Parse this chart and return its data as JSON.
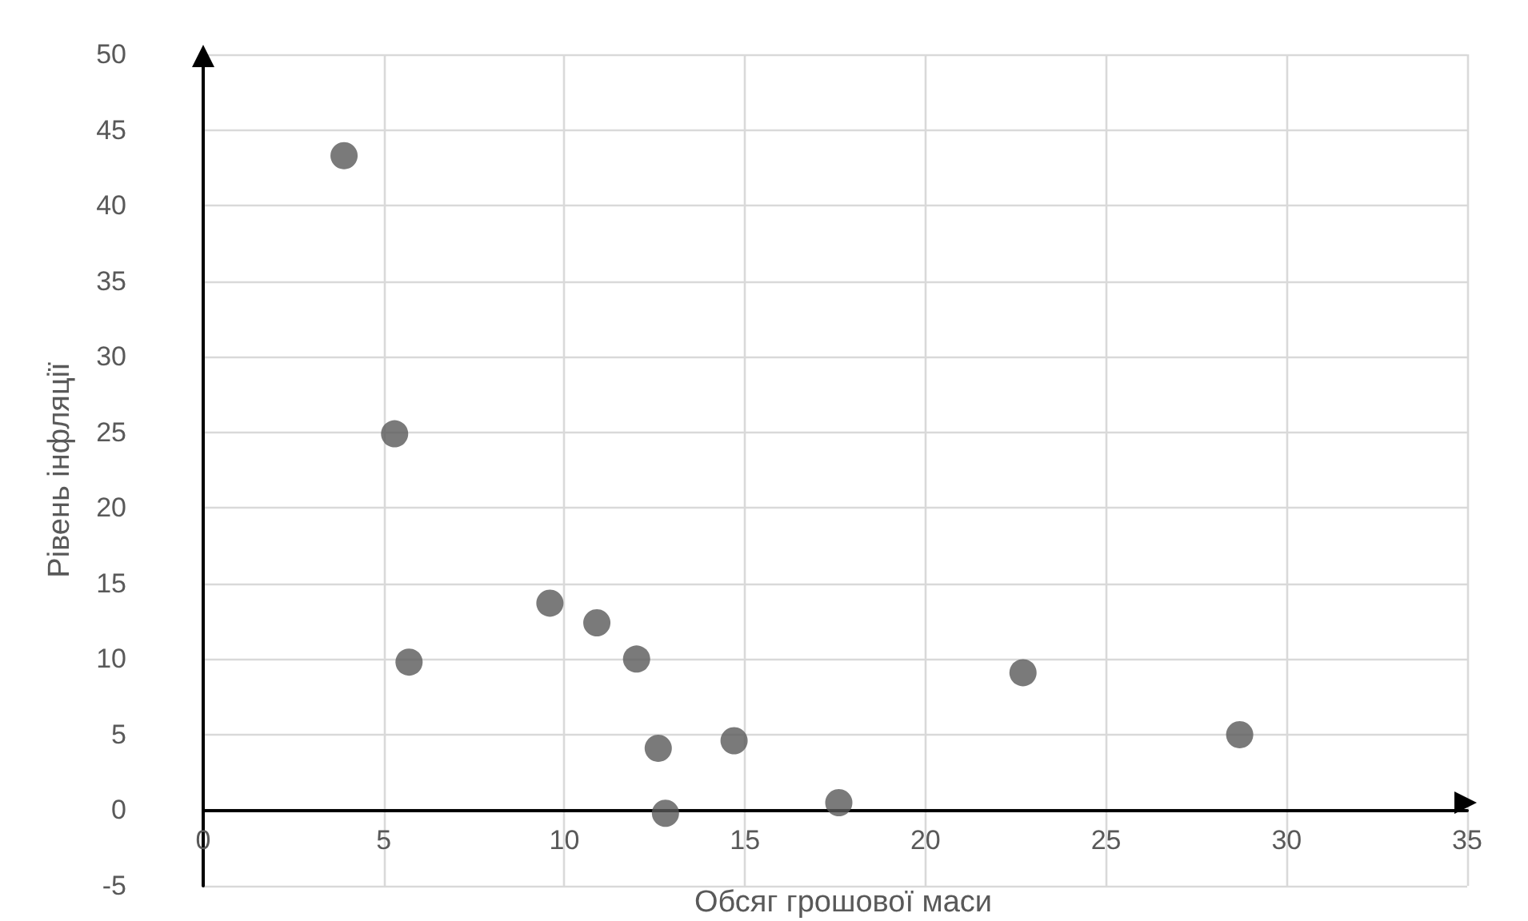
{
  "chart_data": {
    "type": "scatter",
    "xlabel": "Обсяг грошової маси",
    "ylabel": "Рівень інфляції",
    "x": [
      3.9,
      5.3,
      5.7,
      9.6,
      10.9,
      12.0,
      12.6,
      12.8,
      14.7,
      17.6,
      22.7,
      28.7
    ],
    "series": [
      {
        "color": "#595959",
        "values": [
          43.3,
          24.9,
          9.8,
          13.7,
          12.4,
          10.0,
          4.1,
          -0.2,
          4.6,
          0.5,
          9.1,
          5.0
        ]
      }
    ],
    "xlim": [
      0,
      35
    ],
    "xticks": [
      0,
      5,
      10,
      15,
      20,
      25,
      30,
      35
    ],
    "ylim": [
      -5,
      50
    ],
    "yticks": [
      -5,
      0,
      5,
      10,
      15,
      20,
      25,
      30,
      35,
      40,
      45,
      50
    ],
    "grid": true,
    "marker": "circle"
  }
}
